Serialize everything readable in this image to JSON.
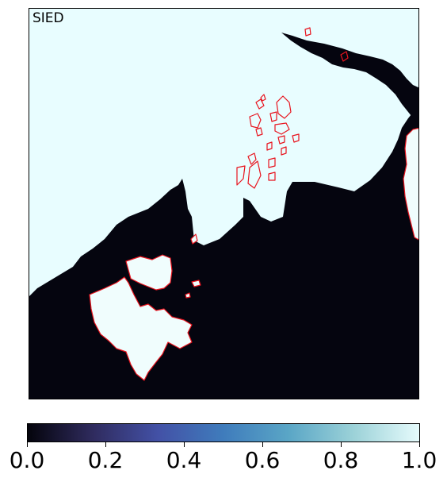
{
  "panel_label": "SIED",
  "colors": {
    "ocean_ice_free": "#05050f",
    "sea_ice": "#e8fdff",
    "land": "#f0fdfd",
    "coastline": "#e8141e"
  },
  "colorbar": {
    "colormap": "ice",
    "range": [
      0.0,
      1.0
    ],
    "stops": [
      "#04040c",
      "#2f2b5e",
      "#4351a6",
      "#3f7cbc",
      "#5aa6c6",
      "#9cd2d8",
      "#e6fbfc"
    ],
    "ticks": [
      "0.0",
      "0.2",
      "0.4",
      "0.6",
      "0.8",
      "1.0"
    ]
  }
}
